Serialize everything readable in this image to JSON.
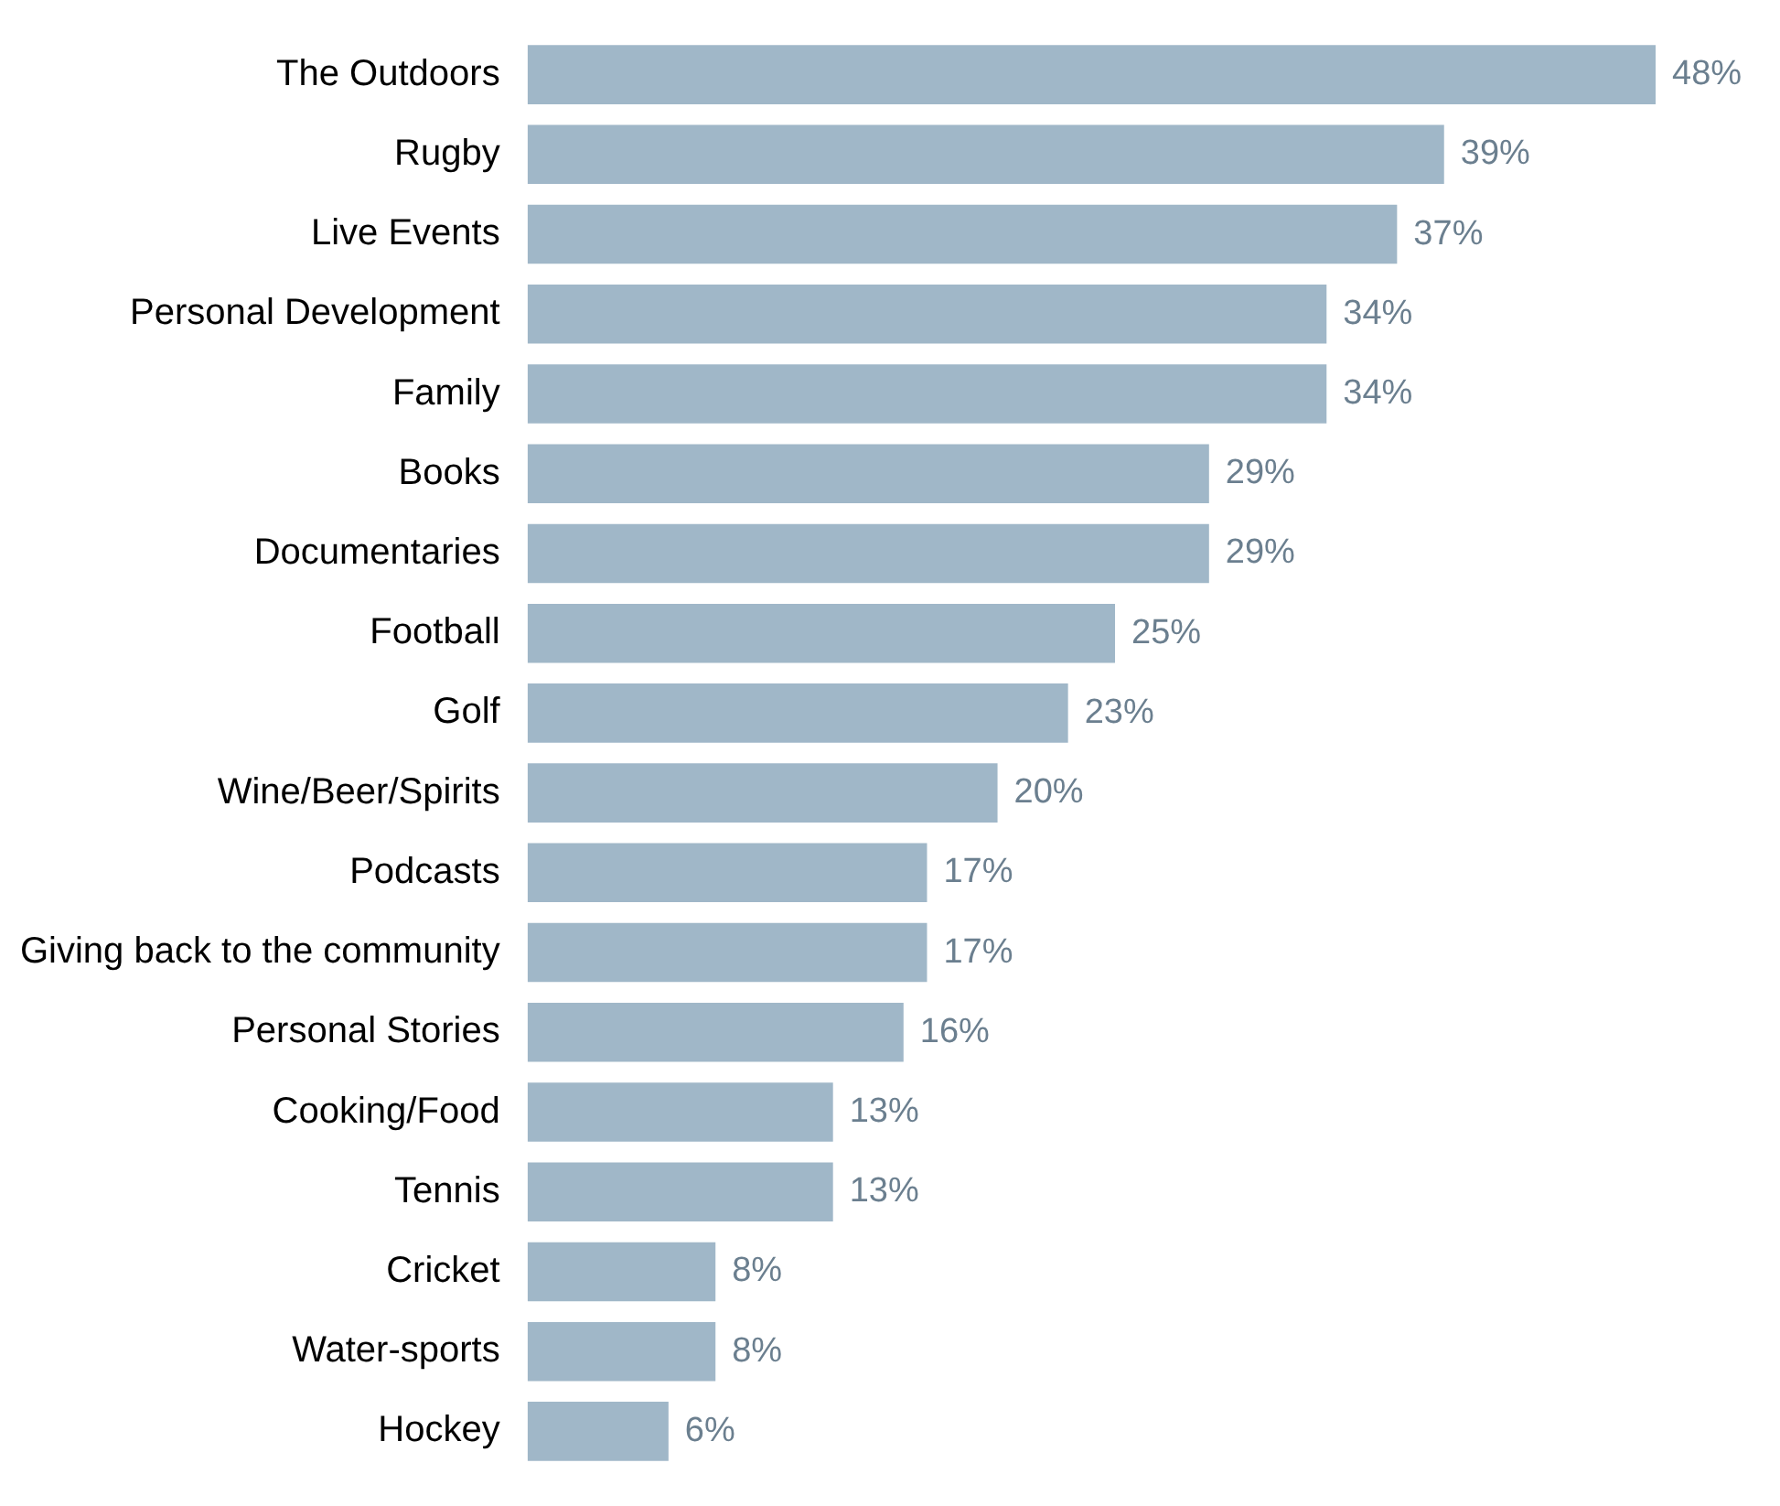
{
  "chart_data": {
    "type": "bar",
    "orientation": "horizontal",
    "categories": [
      "The Outdoors",
      "Rugby",
      "Live Events",
      "Personal Development",
      "Family",
      "Books",
      "Documentaries",
      "Football",
      "Golf",
      "Wine/Beer/Spirits",
      "Podcasts",
      "Giving back to the community",
      "Personal Stories",
      "Cooking/Food",
      "Tennis",
      "Cricket",
      "Water-sports",
      "Hockey"
    ],
    "values": [
      48,
      39,
      37,
      34,
      34,
      29,
      29,
      25,
      23,
      20,
      17,
      17,
      16,
      13,
      13,
      8,
      8,
      6
    ],
    "value_labels": [
      "48%",
      "39%",
      "37%",
      "34%",
      "34%",
      "29%",
      "29%",
      "25%",
      "23%",
      "20%",
      "17%",
      "17%",
      "16%",
      "13%",
      "13%",
      "8%",
      "8%",
      "6%"
    ],
    "color": "#a0b7c8"
  }
}
